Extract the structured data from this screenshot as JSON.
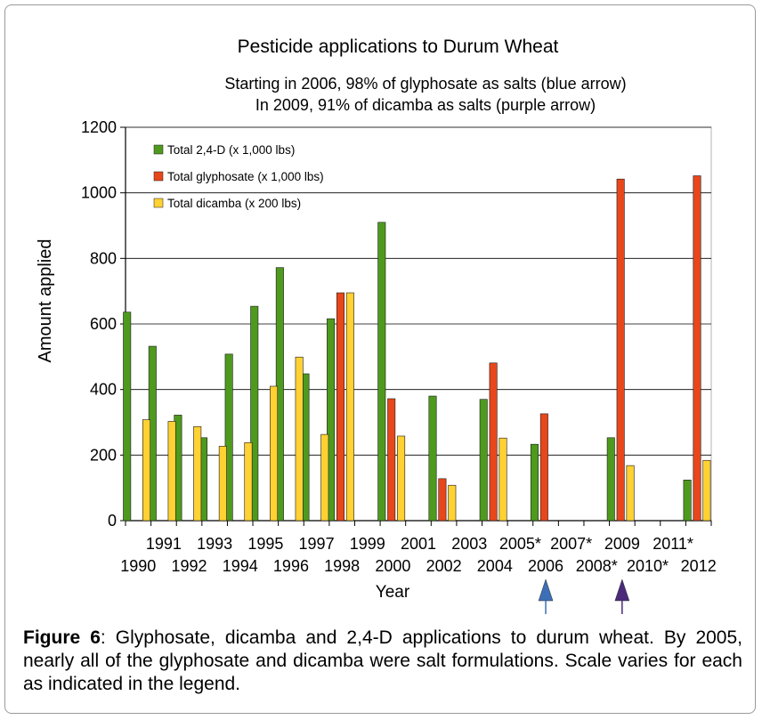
{
  "chart_data": {
    "type": "bar",
    "title": "Pesticide applications to Durum Wheat",
    "subtitle_lines": [
      "Starting in 2006, 98% of glyphosate as salts (blue arrow)",
      "In 2009, 91% of dicamba as salts (purple arrow)"
    ],
    "xlabel": "Year",
    "ylabel": "Amount  applied",
    "ylim": [
      0,
      1200
    ],
    "yticks": [
      0,
      200,
      400,
      600,
      800,
      1000,
      1200
    ],
    "grid": true,
    "legend_position": "top-left",
    "categories": [
      "1990",
      "1991",
      "1992",
      "1993",
      "1994",
      "1995",
      "1996",
      "1997",
      "1998",
      "1999",
      "2000",
      "2001",
      "2002",
      "2003",
      "2004",
      "2005*",
      "2006",
      "2007*",
      "2008*",
      "2009",
      "2010*",
      "2011*",
      "2012"
    ],
    "series": [
      {
        "name": "Total 2,4-D (x 1,000 lbs)",
        "color": "#4e9a1e",
        "values": [
          636,
          532,
          322,
          253,
          508,
          654,
          772,
          448,
          616,
          null,
          910,
          null,
          380,
          null,
          370,
          null,
          233,
          null,
          null,
          253,
          null,
          null,
          124
        ]
      },
      {
        "name": "Total glyphosate (x 1,000 lbs)",
        "color": "#e8471b",
        "values": [
          null,
          null,
          null,
          null,
          null,
          null,
          null,
          null,
          695,
          null,
          372,
          null,
          128,
          null,
          481,
          null,
          326,
          null,
          null,
          1042,
          null,
          null,
          1052
        ]
      },
      {
        "name": "Total dicamba (x 200 lbs)",
        "color": "#ffd133",
        "values": [
          308,
          303,
          287,
          227,
          238,
          410,
          499,
          263,
          695,
          null,
          258,
          null,
          108,
          null,
          252,
          null,
          null,
          null,
          null,
          168,
          null,
          null,
          184
        ]
      }
    ],
    "annotations": [
      {
        "type": "arrow",
        "category": "2006",
        "color": "#3d6fb6",
        "meaning": "blue arrow"
      },
      {
        "type": "arrow",
        "category": "2009",
        "color": "#4b2a7a",
        "meaning": "purple arrow"
      }
    ]
  },
  "caption": {
    "label": "Figure 6",
    "text": ": Glyphosate, dicamba and 2,4-D applications to durum wheat.  By 2005, nearly all of the glyphosate and dicamba were salt formulations.  Scale varies for each as indicated in the legend."
  }
}
